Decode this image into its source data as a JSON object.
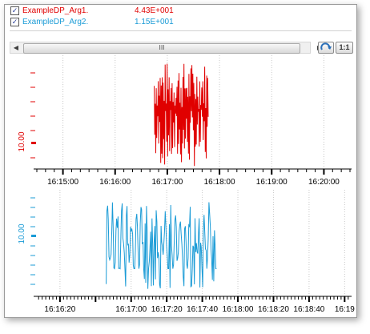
{
  "legend": [
    {
      "name": "ExampleDP_Arg1.",
      "value": "4.43E+001",
      "checked": true,
      "color": "#e00000"
    },
    {
      "name": "ExampleDP_Arg2.",
      "value": "1.15E+001",
      "checked": true,
      "color": "#1a9bd6"
    }
  ],
  "toolbar": {
    "left_arrow": "◀",
    "right_arrow": "▶",
    "thumb_grip": "III",
    "reset_icon": "reset-zoom-icon",
    "one_to_one_label": "1:1"
  },
  "chart_data": [
    {
      "type": "line",
      "series": [
        {
          "name": "ExampleDP_Arg1.",
          "color": "#e00000"
        }
      ],
      "ylabel": "10.00",
      "x_tick_labels": [
        "16:15:00",
        "16:16:00",
        "16:17:00",
        "16:18:00",
        "16:19:00",
        "16:20:00"
      ],
      "x_range": [
        "16:14:30",
        "16:20:30"
      ],
      "data_time_range": [
        "16:16:45",
        "16:17:47"
      ],
      "grid": true
    },
    {
      "type": "line",
      "series": [
        {
          "name": "ExampleDP_Arg2.",
          "color": "#1a9bd6"
        }
      ],
      "ylabel": "10.00",
      "x_tick_labels": [
        "16:16:20",
        "16:17:00",
        "16:17:20",
        "16:17:40",
        "16:18:00",
        "16:18:20",
        "16:18:40",
        "16:19"
      ],
      "x_range": [
        "16:16:07",
        "16:19:03"
      ],
      "data_time_range": [
        "16:16:46",
        "16:17:48"
      ],
      "grid": true
    }
  ]
}
